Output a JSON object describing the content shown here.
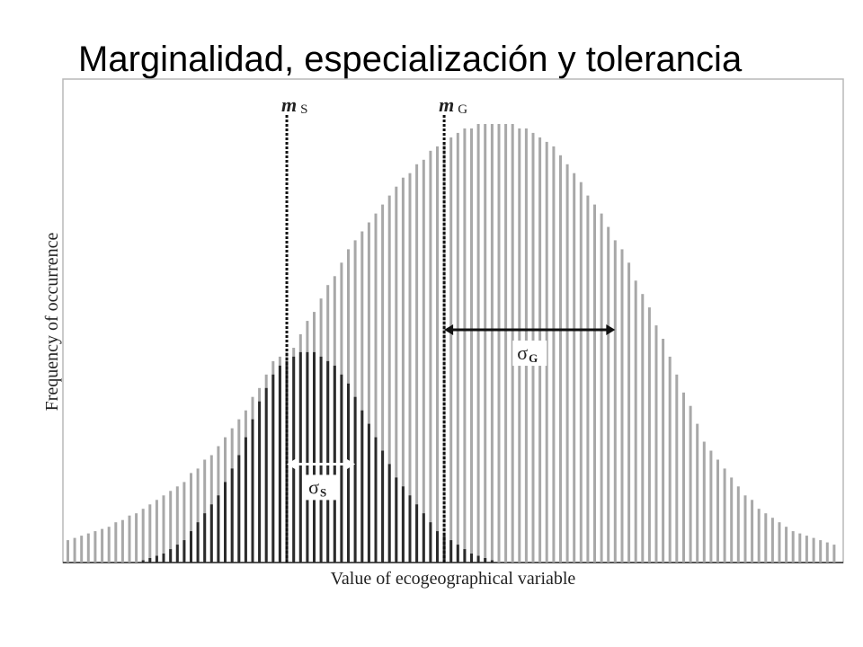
{
  "slide": {
    "title": "Marginalidad, especialización y tolerancia"
  },
  "chart_data": {
    "type": "bar",
    "xlabel": "Value of ecogeographical variable",
    "ylabel": "Frequency of occurrence",
    "x_range": [
      0,
      100
    ],
    "y_range": [
      0,
      100
    ],
    "grid": false,
    "legend": "none",
    "series": [
      {
        "key": "global",
        "color": "#a8a8a8",
        "values": [
          5,
          5.5,
          6,
          6.5,
          7,
          7.5,
          8,
          9,
          9.5,
          10.5,
          11,
          12,
          13,
          14,
          15,
          16,
          17,
          18,
          20,
          21,
          23,
          24,
          26,
          28,
          30,
          32,
          34,
          37,
          39,
          42,
          45,
          46,
          47,
          48,
          51,
          54,
          56,
          59,
          62,
          64,
          67,
          70,
          72,
          74,
          76,
          78,
          80,
          82,
          84,
          86,
          87,
          89,
          90,
          92,
          93,
          94,
          95,
          96,
          97,
          97,
          98,
          98,
          98,
          98,
          98,
          98,
          97,
          97,
          96,
          95,
          94,
          93,
          91,
          89,
          87,
          85,
          82,
          80,
          78,
          75,
          72,
          70,
          67,
          63,
          60,
          57,
          53,
          50,
          46,
          42,
          38,
          35,
          31,
          27,
          25,
          23,
          21,
          19,
          17,
          15,
          14,
          12,
          11,
          10,
          9,
          8,
          7,
          6.5,
          6,
          5.5,
          5,
          4.5,
          4
        ]
      },
      {
        "key": "species",
        "color": "#2b2b2b",
        "values": [
          0,
          0,
          0,
          0,
          0,
          0,
          0,
          0,
          0,
          0,
          0,
          0.5,
          1,
          1.5,
          2,
          3,
          4,
          5,
          7,
          9,
          11,
          13,
          15,
          18,
          21,
          24,
          28,
          32,
          36,
          39,
          42,
          44,
          45,
          46,
          47,
          47,
          47,
          46,
          45,
          44,
          42,
          40,
          37,
          34,
          31,
          28,
          25,
          22,
          19,
          17,
          15,
          13,
          11,
          9,
          7,
          6,
          5,
          4,
          3,
          2,
          1.5,
          1,
          0.5,
          0,
          0,
          0,
          0,
          0,
          0,
          0,
          0,
          0,
          0,
          0,
          0,
          0,
          0,
          0,
          0,
          0,
          0,
          0,
          0,
          0,
          0,
          0,
          0,
          0,
          0,
          0,
          0,
          0,
          0,
          0,
          0,
          0,
          0,
          0,
          0,
          0,
          0,
          0,
          0,
          0,
          0,
          0,
          0,
          0,
          0,
          0,
          0
        ]
      }
    ],
    "annotations": {
      "m_species": {
        "label": "m",
        "subscript": "S",
        "x_index": 32
      },
      "m_global": {
        "label": "m",
        "subscript": "G",
        "x_index": 55
      },
      "sigma_species": {
        "label": "σ",
        "subscript": "S",
        "from_index": 32,
        "to_index": 42,
        "level": 22
      },
      "sigma_global": {
        "label": "σ",
        "subscript": "G",
        "from_index": 55,
        "to_index": 80,
        "level": 52
      }
    }
  }
}
